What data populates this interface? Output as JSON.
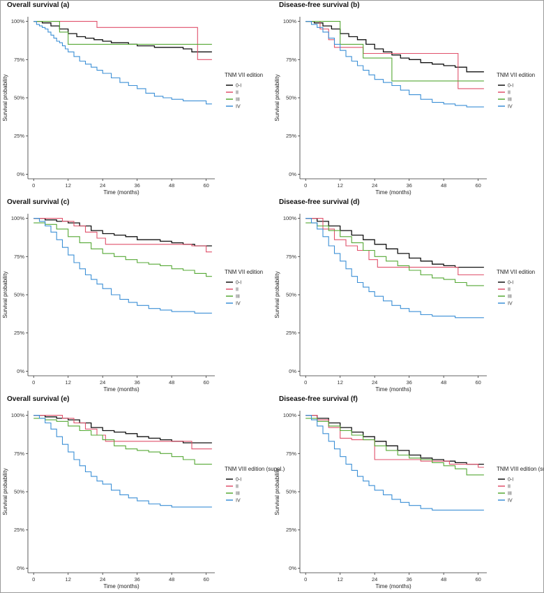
{
  "chart_data": [
    {
      "type": "line",
      "title": "Overall survival (a)",
      "xlabel": "Time (months)",
      "ylabel": "Survival probability",
      "xlim": [
        -2,
        63
      ],
      "ylim": [
        -0.03,
        1.03
      ],
      "x_ticks": [
        "0",
        "12",
        "24",
        "36",
        "48",
        "60"
      ],
      "y_ticks": [
        "0%",
        "25%",
        "50%",
        "75%",
        "100%"
      ],
      "legend_title": "TNM VII edition",
      "legend_position": "right",
      "series": [
        {
          "name": "0-I",
          "color": "#111111",
          "x": [
            0,
            3,
            6,
            9,
            12,
            15,
            18,
            21,
            24,
            27,
            30,
            33,
            36,
            42,
            48,
            52,
            55,
            62
          ],
          "y": [
            1.0,
            0.99,
            0.97,
            0.95,
            0.92,
            0.9,
            0.89,
            0.88,
            0.87,
            0.86,
            0.86,
            0.85,
            0.84,
            0.83,
            0.83,
            0.82,
            0.8,
            0.8
          ]
        },
        {
          "name": "II",
          "color": "#e0516b",
          "x": [
            0,
            7,
            22,
            54,
            57,
            62
          ],
          "y": [
            1.0,
            1.0,
            0.96,
            0.96,
            0.75,
            0.75
          ]
        },
        {
          "name": "III",
          "color": "#55a834",
          "x": [
            0,
            9,
            12,
            62
          ],
          "y": [
            1.0,
            0.93,
            0.85,
            0.85
          ]
        },
        {
          "name": "IV",
          "color": "#3b8fd6",
          "x": [
            0,
            1,
            2,
            3,
            4,
            5,
            6,
            7,
            8,
            9,
            10,
            11,
            12,
            14,
            16,
            18,
            20,
            22,
            24,
            27,
            30,
            33,
            36,
            39,
            42,
            45,
            48,
            52,
            56,
            60,
            62
          ],
          "y": [
            1.0,
            0.98,
            0.97,
            0.96,
            0.95,
            0.93,
            0.91,
            0.89,
            0.87,
            0.86,
            0.84,
            0.82,
            0.8,
            0.77,
            0.74,
            0.72,
            0.7,
            0.68,
            0.66,
            0.63,
            0.6,
            0.58,
            0.56,
            0.53,
            0.51,
            0.5,
            0.49,
            0.48,
            0.48,
            0.46,
            0.46
          ]
        }
      ]
    },
    {
      "type": "line",
      "title": "Disease-free survival (b)",
      "xlabel": "Time (months)",
      "ylabel": "Survival probability",
      "xlim": [
        -2,
        63
      ],
      "ylim": [
        -0.03,
        1.03
      ],
      "x_ticks": [
        "0",
        "12",
        "24",
        "36",
        "48",
        "60"
      ],
      "y_ticks": [
        "0%",
        "25%",
        "50%",
        "75%",
        "100%"
      ],
      "legend_title": "TNM VII edition",
      "legend_position": "right",
      "series": [
        {
          "name": "0-I",
          "color": "#111111",
          "x": [
            0,
            3,
            6,
            9,
            12,
            15,
            18,
            21,
            24,
            27,
            30,
            33,
            36,
            40,
            44,
            48,
            52,
            56,
            62
          ],
          "y": [
            1.0,
            0.99,
            0.97,
            0.95,
            0.92,
            0.9,
            0.88,
            0.85,
            0.82,
            0.8,
            0.78,
            0.76,
            0.75,
            0.73,
            0.72,
            0.71,
            0.7,
            0.67,
            0.67
          ]
        },
        {
          "name": "II",
          "color": "#e0516b",
          "x": [
            0,
            5,
            8,
            10,
            20,
            25,
            51,
            53,
            62
          ],
          "y": [
            1.0,
            0.95,
            0.88,
            0.83,
            0.79,
            0.79,
            0.79,
            0.56,
            0.56
          ]
        },
        {
          "name": "III",
          "color": "#55a834",
          "x": [
            0,
            8,
            12,
            20,
            25,
            30,
            62
          ],
          "y": [
            1.0,
            1.0,
            0.85,
            0.76,
            0.76,
            0.61,
            0.61
          ]
        },
        {
          "name": "IV",
          "color": "#3b8fd6",
          "x": [
            0,
            2,
            4,
            6,
            8,
            10,
            12,
            14,
            16,
            18,
            20,
            22,
            24,
            27,
            30,
            33,
            36,
            40,
            44,
            48,
            52,
            56,
            62
          ],
          "y": [
            1.0,
            0.98,
            0.96,
            0.93,
            0.89,
            0.85,
            0.81,
            0.77,
            0.74,
            0.71,
            0.68,
            0.65,
            0.62,
            0.6,
            0.58,
            0.55,
            0.52,
            0.49,
            0.47,
            0.46,
            0.45,
            0.44,
            0.44
          ]
        }
      ]
    },
    {
      "type": "line",
      "title": "Overall survival (c)",
      "xlabel": "Time (months)",
      "ylabel": "Survival probability",
      "xlim": [
        -2,
        63
      ],
      "ylim": [
        -0.03,
        1.03
      ],
      "x_ticks": [
        "0",
        "12",
        "24",
        "36",
        "48",
        "60"
      ],
      "y_ticks": [
        "0%",
        "25%",
        "50%",
        "75%",
        "100%"
      ],
      "legend_title": "TNM VII edition",
      "legend_position": "right",
      "series": [
        {
          "name": "0-I",
          "color": "#111111",
          "x": [
            0,
            4,
            8,
            12,
            16,
            20,
            24,
            28,
            32,
            36,
            40,
            44,
            48,
            52,
            56,
            62
          ],
          "y": [
            1.0,
            0.99,
            0.98,
            0.97,
            0.95,
            0.92,
            0.9,
            0.89,
            0.88,
            0.86,
            0.86,
            0.85,
            0.84,
            0.83,
            0.82,
            0.82
          ]
        },
        {
          "name": "II",
          "color": "#e0516b",
          "x": [
            0,
            6,
            10,
            14,
            18,
            22,
            25,
            50,
            55,
            60,
            62
          ],
          "y": [
            1.0,
            1.0,
            0.98,
            0.95,
            0.91,
            0.87,
            0.83,
            0.83,
            0.82,
            0.78,
            0.78
          ]
        },
        {
          "name": "III",
          "color": "#55a834",
          "x": [
            0,
            4,
            8,
            12,
            16,
            20,
            24,
            28,
            32,
            36,
            40,
            44,
            48,
            52,
            56,
            60,
            62
          ],
          "y": [
            0.97,
            0.96,
            0.93,
            0.88,
            0.84,
            0.8,
            0.77,
            0.75,
            0.73,
            0.71,
            0.7,
            0.69,
            0.67,
            0.66,
            0.64,
            0.62,
            0.62
          ]
        },
        {
          "name": "IV",
          "color": "#3b8fd6",
          "x": [
            0,
            2,
            4,
            6,
            8,
            10,
            12,
            14,
            16,
            18,
            20,
            22,
            24,
            27,
            30,
            33,
            36,
            40,
            44,
            48,
            52,
            56,
            62
          ],
          "y": [
            1.0,
            0.98,
            0.95,
            0.91,
            0.86,
            0.81,
            0.76,
            0.71,
            0.67,
            0.63,
            0.6,
            0.57,
            0.54,
            0.5,
            0.47,
            0.45,
            0.43,
            0.41,
            0.4,
            0.39,
            0.39,
            0.38,
            0.38
          ]
        }
      ]
    },
    {
      "type": "line",
      "title": "Disease-free survival (d)",
      "xlabel": "Time (months)",
      "ylabel": "Survival probability",
      "xlim": [
        -2,
        63
      ],
      "ylim": [
        -0.03,
        1.03
      ],
      "x_ticks": [
        "0",
        "12",
        "24",
        "36",
        "48",
        "60"
      ],
      "y_ticks": [
        "0%",
        "25%",
        "50%",
        "75%",
        "100%"
      ],
      "legend_title": "TNM VII edition",
      "legend_position": "right",
      "series": [
        {
          "name": "0-I",
          "color": "#111111",
          "x": [
            0,
            4,
            8,
            12,
            16,
            20,
            24,
            28,
            32,
            36,
            40,
            44,
            48,
            52,
            56,
            62
          ],
          "y": [
            1.0,
            0.98,
            0.95,
            0.92,
            0.89,
            0.86,
            0.83,
            0.8,
            0.77,
            0.74,
            0.72,
            0.7,
            0.69,
            0.68,
            0.68,
            0.68
          ]
        },
        {
          "name": "II",
          "color": "#e0516b",
          "x": [
            0,
            6,
            10,
            14,
            18,
            22,
            25,
            50,
            53,
            62
          ],
          "y": [
            1.0,
            0.93,
            0.86,
            0.82,
            0.79,
            0.73,
            0.68,
            0.68,
            0.63,
            0.63
          ]
        },
        {
          "name": "III",
          "color": "#55a834",
          "x": [
            0,
            4,
            8,
            12,
            16,
            20,
            24,
            28,
            32,
            36,
            40,
            44,
            48,
            52,
            56,
            62
          ],
          "y": [
            0.97,
            0.95,
            0.92,
            0.88,
            0.84,
            0.79,
            0.75,
            0.72,
            0.69,
            0.66,
            0.63,
            0.61,
            0.6,
            0.58,
            0.56,
            0.56
          ]
        },
        {
          "name": "IV",
          "color": "#3b8fd6",
          "x": [
            0,
            2,
            4,
            6,
            8,
            10,
            12,
            14,
            16,
            18,
            20,
            22,
            24,
            27,
            30,
            33,
            36,
            40,
            44,
            48,
            52,
            56,
            62
          ],
          "y": [
            1.0,
            0.97,
            0.93,
            0.88,
            0.82,
            0.77,
            0.72,
            0.67,
            0.62,
            0.58,
            0.55,
            0.52,
            0.49,
            0.46,
            0.43,
            0.41,
            0.39,
            0.37,
            0.36,
            0.36,
            0.35,
            0.35,
            0.35
          ]
        }
      ]
    },
    {
      "type": "line",
      "title": "Overall survival (e)",
      "xlabel": "Time (months)",
      "ylabel": "Survival probability",
      "xlim": [
        -2,
        63
      ],
      "ylim": [
        -0.03,
        1.03
      ],
      "x_ticks": [
        "0",
        "12",
        "24",
        "36",
        "48",
        "60"
      ],
      "y_ticks": [
        "0%",
        "25%",
        "50%",
        "75%",
        "100%"
      ],
      "legend_title": "TNM VIII edition (suppl.)",
      "legend_position": "right",
      "series": [
        {
          "name": "0-I",
          "color": "#111111",
          "x": [
            0,
            4,
            8,
            12,
            16,
            20,
            24,
            28,
            32,
            36,
            40,
            44,
            48,
            52,
            56,
            62
          ],
          "y": [
            1.0,
            0.99,
            0.98,
            0.97,
            0.95,
            0.92,
            0.9,
            0.89,
            0.88,
            0.86,
            0.85,
            0.84,
            0.83,
            0.82,
            0.82,
            0.82
          ]
        },
        {
          "name": "II",
          "color": "#e0516b",
          "x": [
            0,
            6,
            10,
            14,
            18,
            22,
            25,
            50,
            55,
            62
          ],
          "y": [
            1.0,
            1.0,
            0.98,
            0.95,
            0.91,
            0.87,
            0.83,
            0.83,
            0.78,
            0.78
          ]
        },
        {
          "name": "III",
          "color": "#55a834",
          "x": [
            0,
            4,
            8,
            12,
            16,
            20,
            24,
            28,
            32,
            36,
            40,
            44,
            48,
            52,
            56,
            62
          ],
          "y": [
            0.98,
            0.97,
            0.96,
            0.93,
            0.9,
            0.87,
            0.84,
            0.8,
            0.78,
            0.77,
            0.76,
            0.75,
            0.73,
            0.71,
            0.68,
            0.68
          ]
        },
        {
          "name": "IV",
          "color": "#3b8fd6",
          "x": [
            0,
            2,
            4,
            6,
            8,
            10,
            12,
            14,
            16,
            18,
            20,
            22,
            24,
            27,
            30,
            33,
            36,
            40,
            44,
            48,
            52,
            56,
            62
          ],
          "y": [
            1.0,
            0.98,
            0.95,
            0.91,
            0.86,
            0.81,
            0.76,
            0.71,
            0.67,
            0.63,
            0.6,
            0.57,
            0.55,
            0.51,
            0.48,
            0.46,
            0.44,
            0.42,
            0.41,
            0.4,
            0.4,
            0.4,
            0.4
          ]
        }
      ]
    },
    {
      "type": "line",
      "title": "Disease-free survival (f)",
      "xlabel": "Time (months)",
      "ylabel": "Survival probability",
      "xlim": [
        -2,
        63
      ],
      "ylim": [
        -0.03,
        1.03
      ],
      "x_ticks": [
        "0",
        "12",
        "24",
        "36",
        "48",
        "60"
      ],
      "y_ticks": [
        "0%",
        "25%",
        "50%",
        "75%",
        "100%"
      ],
      "legend_title": "TNM VIII edition (suppl.)",
      "legend_position": "right",
      "series": [
        {
          "name": "0-I",
          "color": "#111111",
          "x": [
            0,
            4,
            8,
            12,
            16,
            20,
            24,
            28,
            32,
            36,
            40,
            44,
            48,
            52,
            56,
            62
          ],
          "y": [
            1.0,
            0.98,
            0.95,
            0.92,
            0.89,
            0.86,
            0.83,
            0.8,
            0.77,
            0.74,
            0.72,
            0.71,
            0.7,
            0.69,
            0.68,
            0.68
          ]
        },
        {
          "name": "II",
          "color": "#e0516b",
          "x": [
            0,
            4,
            8,
            12,
            16,
            20,
            24,
            28,
            40,
            50,
            60,
            62
          ],
          "y": [
            1.0,
            0.97,
            0.92,
            0.85,
            0.84,
            0.84,
            0.71,
            0.71,
            0.7,
            0.68,
            0.66,
            0.66
          ]
        },
        {
          "name": "III",
          "color": "#55a834",
          "x": [
            0,
            4,
            8,
            12,
            16,
            20,
            24,
            28,
            32,
            36,
            40,
            44,
            48,
            52,
            56,
            62
          ],
          "y": [
            0.98,
            0.96,
            0.93,
            0.9,
            0.87,
            0.84,
            0.8,
            0.77,
            0.74,
            0.72,
            0.71,
            0.69,
            0.67,
            0.65,
            0.61,
            0.61
          ]
        },
        {
          "name": "IV",
          "color": "#3b8fd6",
          "x": [
            0,
            2,
            4,
            6,
            8,
            10,
            12,
            14,
            16,
            18,
            20,
            22,
            24,
            27,
            30,
            33,
            36,
            40,
            44,
            48,
            52,
            56,
            62
          ],
          "y": [
            1.0,
            0.97,
            0.93,
            0.88,
            0.83,
            0.78,
            0.73,
            0.68,
            0.64,
            0.6,
            0.57,
            0.54,
            0.51,
            0.48,
            0.45,
            0.43,
            0.41,
            0.39,
            0.38,
            0.38,
            0.38,
            0.38,
            0.38
          ]
        }
      ]
    }
  ]
}
